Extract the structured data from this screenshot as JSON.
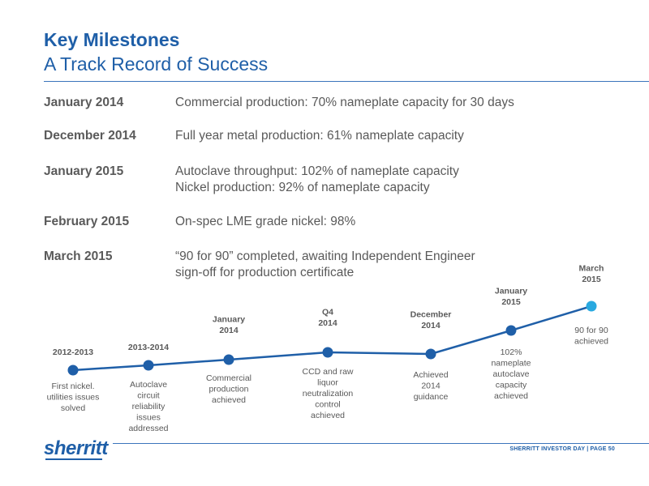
{
  "header": {
    "title": "Key Milestones",
    "subtitle": "A Track Record of Success"
  },
  "milestones": [
    {
      "date": "January 2014",
      "lines": [
        "Commercial production: 70% nameplate capacity for 30 days"
      ]
    },
    {
      "date": "December 2014",
      "lines": [
        "Full year metal production: 61% nameplate capacity"
      ]
    },
    {
      "date": "January 2015",
      "lines": [
        "Autoclave throughput: 102% of nameplate capacity",
        "Nickel production: 92% of nameplate capacity"
      ]
    },
    {
      "date": "February 2015",
      "lines": [
        "On-spec LME grade nickel: 98%"
      ]
    },
    {
      "date": "March 2015",
      "lines": [
        "“90 for 90” completed, awaiting Independent Engineer",
        "sign-off for production certificate"
      ]
    }
  ],
  "timeline": {
    "line_color": "#1f5fa8",
    "last_point_color": "#29a9e0",
    "points": [
      {
        "label": [
          "2012-2013"
        ],
        "desc": [
          "First nickel.",
          "utilities issues",
          "solved"
        ]
      },
      {
        "label": [
          "2013-2014"
        ],
        "desc": [
          "Autoclave",
          "circuit",
          "reliability",
          "issues",
          "addressed"
        ]
      },
      {
        "label": [
          "January",
          "2014"
        ],
        "desc": [
          "Commercial",
          "production",
          "achieved"
        ]
      },
      {
        "label": [
          "Q4",
          "2014"
        ],
        "desc": [
          "CCD and raw",
          "liquor",
          "neutralization",
          "control",
          "achieved"
        ]
      },
      {
        "label": [
          "December",
          "2014"
        ],
        "desc": [
          "Achieved",
          "2014",
          "guidance"
        ]
      },
      {
        "label": [
          "January",
          "2015"
        ],
        "desc": [
          "102%",
          "nameplate",
          "autoclave",
          "capacity",
          "achieved"
        ]
      },
      {
        "label": [
          "March",
          "2015"
        ],
        "desc": [
          "90 for 90",
          "achieved"
        ]
      }
    ]
  },
  "footer": {
    "logo": "sherritt",
    "text": "SHERRITT INVESTOR DAY | PAGE 50"
  }
}
